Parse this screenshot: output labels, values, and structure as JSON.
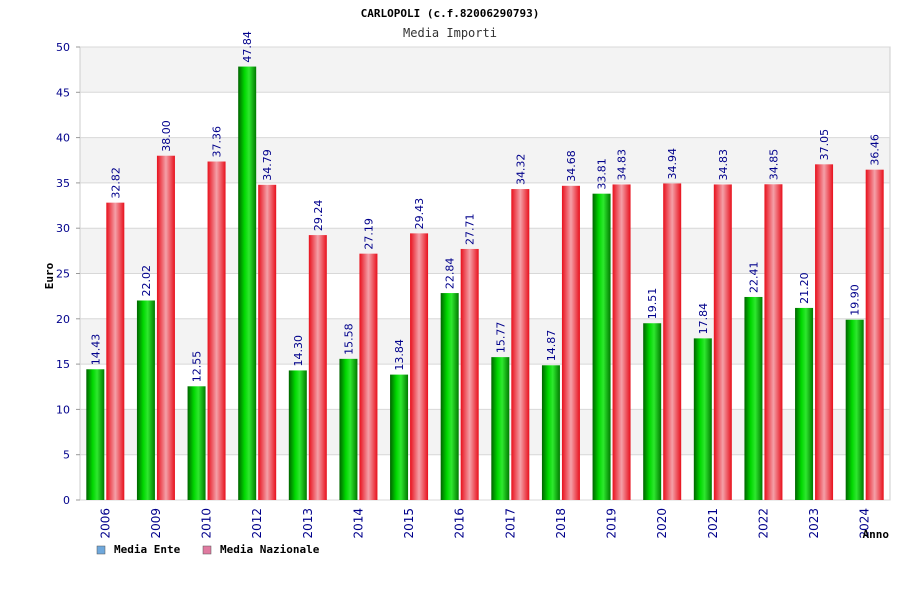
{
  "chart_data": {
    "type": "bar",
    "title": "CARLOPOLI (c.f.82006290793)",
    "subtitle": "Media Importi",
    "xlabel": "Anno",
    "ylabel": "Euro",
    "ylim": [
      0,
      50
    ],
    "yticks": [
      "0",
      "5",
      "10",
      "15",
      "20",
      "25",
      "30",
      "35",
      "40",
      "45",
      "50"
    ],
    "grid": true,
    "legend_position": "bottom-left",
    "categories": [
      "2006",
      "2009",
      "2010",
      "2012",
      "2013",
      "2014",
      "2015",
      "2016",
      "2017",
      "2018",
      "2019",
      "2020",
      "2021",
      "2022",
      "2023",
      "2024"
    ],
    "series": [
      {
        "name": "Media Ente",
        "legend_color": "#6fa8dc",
        "bar_color": "#00b000",
        "values": [
          14.43,
          22.02,
          12.55,
          47.84,
          14.3,
          15.58,
          13.84,
          22.84,
          15.77,
          14.87,
          33.81,
          19.51,
          17.84,
          22.41,
          21.2,
          19.9
        ],
        "labels": [
          "14.43",
          "22.02",
          "12.55",
          "47.84",
          "14.30",
          "15.58",
          "13.84",
          "22.84",
          "15.77",
          "14.87",
          "33.81",
          "19.51",
          "17.84",
          "22.41",
          "21.20",
          "19.90"
        ]
      },
      {
        "name": "Media Nazionale",
        "legend_color": "#e07aa0",
        "bar_color": "#e8101c",
        "values": [
          32.82,
          38.0,
          37.36,
          34.79,
          29.24,
          27.19,
          29.43,
          27.71,
          34.32,
          34.68,
          34.83,
          34.94,
          34.83,
          34.85,
          37.05,
          36.46
        ],
        "labels": [
          "32.82",
          "38.00",
          "37.36",
          "34.79",
          "29.24",
          "27.19",
          "29.43",
          "27.71",
          "34.32",
          "34.68",
          "34.83",
          "34.94",
          "34.83",
          "34.85",
          "37.05",
          "36.46"
        ]
      }
    ]
  }
}
